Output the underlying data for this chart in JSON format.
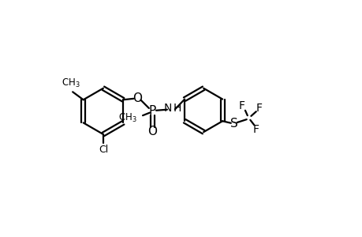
{
  "background_color": "#ffffff",
  "line_color": "#000000",
  "line_width": 1.6,
  "figsize": [
    4.6,
    3.0
  ],
  "dpi": 100,
  "xlim": [
    0,
    10
  ],
  "ylim": [
    0,
    6.5
  ]
}
